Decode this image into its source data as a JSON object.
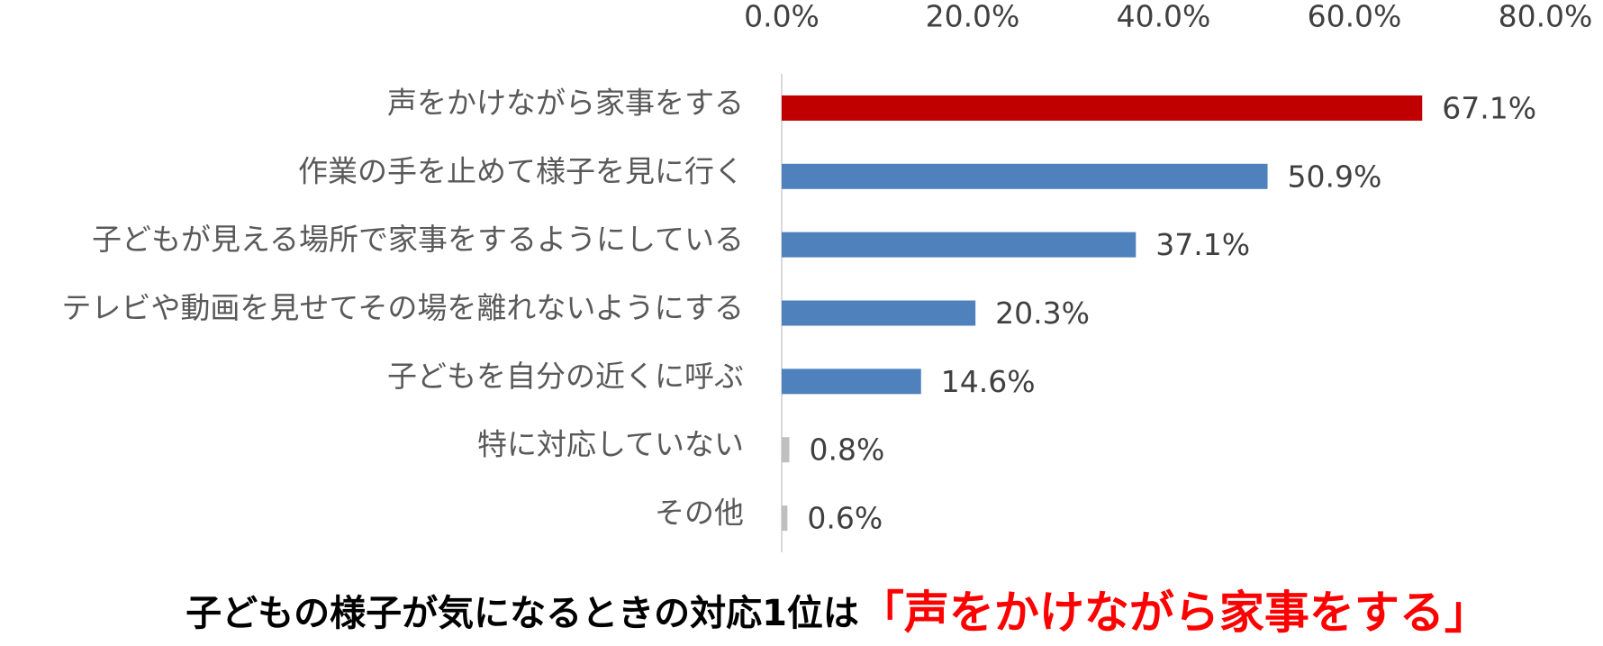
{
  "chart_data": {
    "type": "hbar",
    "categories": [
      "声をかけながら家事をする",
      "作業の手を止めて様子を見に行く",
      "子どもが見える場所で家事をするようにしている",
      "テレビや動画を見せてその場を離れないようにする",
      "子どもを自分の近くに呼ぶ",
      "特に対応していない",
      "その他"
    ],
    "values": [
      67.1,
      50.9,
      37.1,
      20.3,
      14.6,
      0.8,
      0.6
    ],
    "value_labels": [
      "67.1%",
      "50.9%",
      "37.1%",
      "20.3%",
      "14.6%",
      "0.8%",
      "0.6%"
    ],
    "colors": [
      "#c00000",
      "#4f81bd",
      "#4f81bd",
      "#4f81bd",
      "#4f81bd",
      "#bfbfbf",
      "#bfbfbf"
    ],
    "xlim": [
      0,
      80
    ],
    "xticks": [
      {
        "value": 0,
        "label": "0.0%"
      },
      {
        "value": 20,
        "label": "20.0%"
      },
      {
        "value": 40,
        "label": "40.0%"
      },
      {
        "value": 60,
        "label": "60.0%"
      },
      {
        "value": 80,
        "label": "80.0%"
      }
    ]
  },
  "caption": {
    "text": "子どもの様子が気になるときの対応1位は",
    "highlight": "「声をかけながら家事をする」"
  }
}
